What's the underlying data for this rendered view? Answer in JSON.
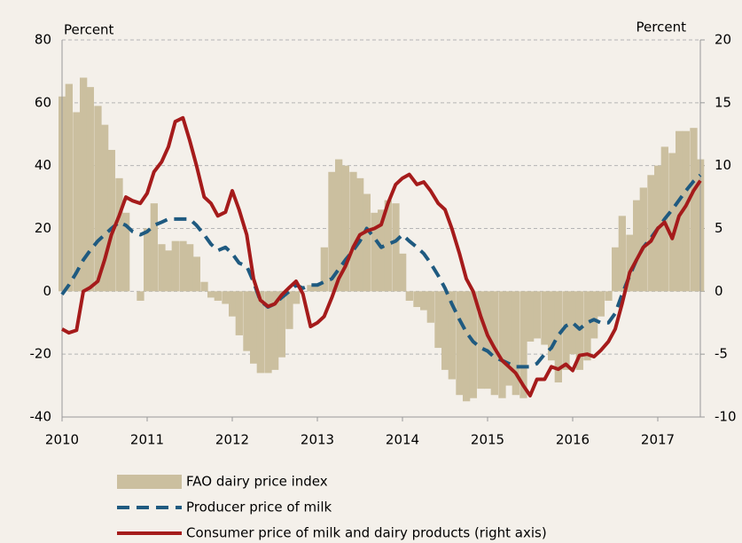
{
  "chart_data": {
    "type": "bar-line",
    "y_label": "Percent",
    "y2_label": "Percent",
    "x": [
      2010,
      2010.08,
      2010.17,
      2010.25,
      2010.33,
      2010.42,
      2010.5,
      2010.58,
      2010.67,
      2010.75,
      2010.83,
      2010.92,
      2011,
      2011.08,
      2011.17,
      2011.25,
      2011.33,
      2011.42,
      2011.5,
      2011.58,
      2011.67,
      2011.75,
      2011.83,
      2011.92,
      2012,
      2012.08,
      2012.17,
      2012.25,
      2012.33,
      2012.42,
      2012.5,
      2012.58,
      2012.67,
      2012.75,
      2012.83,
      2012.92,
      2013,
      2013.08,
      2013.17,
      2013.25,
      2013.33,
      2013.42,
      2013.5,
      2013.58,
      2013.67,
      2013.75,
      2013.83,
      2013.92,
      2014,
      2014.08,
      2014.17,
      2014.25,
      2014.33,
      2014.42,
      2014.5,
      2014.58,
      2014.67,
      2014.75,
      2014.83,
      2014.92,
      2015,
      2015.08,
      2015.17,
      2015.25,
      2015.33,
      2015.42,
      2015.5,
      2015.58,
      2015.67,
      2015.75,
      2015.83,
      2015.92,
      2016,
      2016.08,
      2016.17,
      2016.25,
      2016.33,
      2016.42,
      2016.5,
      2016.58,
      2016.67,
      2016.75,
      2016.83,
      2016.92,
      2017,
      2017.08,
      2017.17,
      2017.25,
      2017.33,
      2017.42,
      2017.5
    ],
    "series": [
      {
        "name": "FAO dairy price index",
        "kind": "bar",
        "color": "#cbbf9f",
        "values": [
          62,
          66,
          57,
          68,
          65,
          59,
          53,
          45,
          36,
          25,
          0,
          -3,
          20,
          28,
          15,
          13,
          16,
          16,
          15,
          11,
          3,
          -2,
          -3,
          -4,
          -8,
          -14,
          -19,
          -23,
          -26,
          -26,
          -25,
          -21,
          -12,
          -4,
          0,
          2,
          2,
          14,
          38,
          42,
          40,
          38,
          36,
          31,
          25,
          26,
          29,
          28,
          12,
          -3,
          -5,
          -6,
          -10,
          -18,
          -25,
          -28,
          -33,
          -35,
          -34,
          -31,
          -31,
          -33,
          -34,
          -30,
          -33,
          -34,
          -16,
          -15,
          -17,
          -22,
          -29,
          -25,
          -20,
          -25,
          -22,
          -15,
          -8,
          -3,
          14,
          24,
          18,
          29,
          33,
          37,
          40,
          46,
          44,
          51,
          51,
          52,
          42
        ]
      },
      {
        "name": "Producer price of milk",
        "kind": "dashed-line",
        "color": "#1f5a80",
        "values": [
          -1,
          2,
          6,
          10,
          13,
          16,
          18,
          20,
          22,
          21,
          19,
          18,
          19,
          21,
          22,
          23,
          23,
          23,
          23,
          21,
          18,
          15,
          13,
          14,
          12,
          9,
          8,
          3,
          -3,
          -5,
          -4,
          -2,
          0,
          2,
          1,
          2,
          2,
          3,
          4,
          7,
          10,
          13,
          16,
          20,
          17,
          14,
          15,
          16,
          18,
          16,
          14,
          12,
          9,
          5,
          1,
          -4,
          -9,
          -13,
          -16,
          -18,
          -19,
          -21,
          -22,
          -23,
          -24,
          -24,
          -24,
          -23,
          -20,
          -18,
          -14,
          -11,
          -10,
          -12,
          -10,
          -9,
          -10,
          -10,
          -7,
          -1,
          5,
          10,
          14,
          17,
          20,
          23,
          26,
          29,
          32,
          35,
          37
        ]
      },
      {
        "name": "Consumer price of milk and dairy products (right axis)",
        "kind": "line",
        "axis": "y2",
        "color": "#a51b1b",
        "values": [
          -3,
          -3.3,
          -3.1,
          0,
          0.3,
          0.8,
          2.5,
          4.5,
          6,
          7.5,
          7.2,
          7,
          7.8,
          9.5,
          10.3,
          11.5,
          13.5,
          13.8,
          12,
          10,
          7.5,
          7,
          6,
          6.3,
          8,
          6.5,
          4.5,
          1,
          -0.7,
          -1.2,
          -1,
          -0.3,
          0.3,
          0.8,
          -0.2,
          -2.8,
          -2.5,
          -2,
          -0.5,
          1,
          2,
          3.5,
          4.5,
          4.8,
          5,
          5.3,
          7,
          8.5,
          9,
          9.3,
          8.5,
          8.7,
          8,
          7,
          6.5,
          5,
          3,
          1,
          0,
          -2,
          -3.5,
          -4.5,
          -5.5,
          -6,
          -6.5,
          -7.5,
          -8.3,
          -7,
          -7,
          -6,
          -6.2,
          -5.8,
          -6.3,
          -5.1,
          -5,
          -5.2,
          -4.7,
          -4,
          -3,
          -1,
          1.5,
          2.5,
          3.5,
          4,
          5,
          5.5,
          4.2,
          6,
          6.8,
          8,
          8.8
        ]
      }
    ],
    "xlim": [
      2010,
      2017.5
    ],
    "xticks": [
      2010,
      2011,
      2012,
      2013,
      2014,
      2015,
      2016,
      2017
    ],
    "ylim": [
      -40,
      80
    ],
    "yticks": [
      -40,
      -20,
      0,
      20,
      40,
      60,
      80
    ],
    "y2lim": [
      -10,
      20
    ],
    "y2ticks": [
      -10,
      -5,
      0,
      5,
      10,
      15,
      20
    ],
    "grid": true,
    "legend": "bottom"
  }
}
